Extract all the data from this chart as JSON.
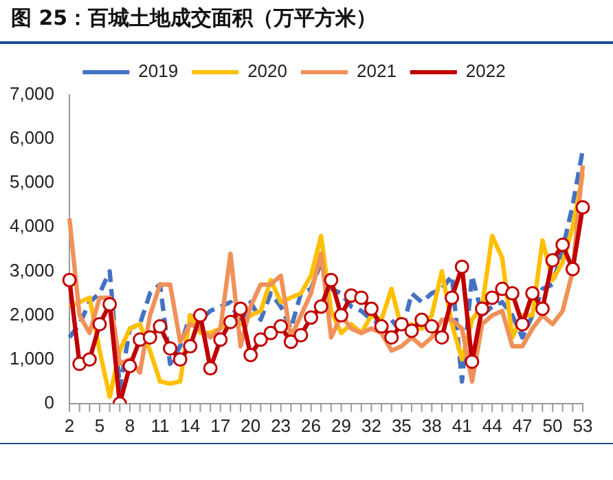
{
  "chart_data": {
    "type": "line",
    "title": "图 25：百城土地成交面积（万平方米）",
    "categories": [
      "2",
      null,
      null,
      "5",
      null,
      null,
      "8",
      null,
      null,
      "11",
      null,
      null,
      "14",
      null,
      null,
      "17",
      null,
      null,
      "20",
      null,
      null,
      "23",
      null,
      null,
      "26",
      null,
      null,
      "29",
      null,
      null,
      "32",
      null,
      null,
      "35",
      null,
      null,
      "38",
      null,
      null,
      "41",
      null,
      null,
      "44",
      null,
      null,
      "47",
      null,
      null,
      "50",
      null,
      null,
      "53"
    ],
    "series": [
      {
        "name": "2019",
        "color": "#4472c4",
        "line_style": "dashed",
        "marker": "none",
        "values": [
          1500,
          1800,
          2300,
          2500,
          3000,
          350,
          1700,
          1800,
          2500,
          2700,
          900,
          1300,
          2000,
          1900,
          2100,
          2200,
          2300,
          1800,
          2300,
          1900,
          2500,
          2200,
          1700,
          2500,
          2600,
          3200,
          2600,
          2500,
          2200,
          2100,
          1900,
          1800,
          1900,
          1600,
          2500,
          2300,
          2500,
          2600,
          2900,
          500,
          2900,
          2000,
          2200,
          2300,
          2000,
          1500,
          2000,
          2600,
          2700,
          3500,
          4500,
          5750
        ]
      },
      {
        "name": "2020",
        "color": "#ffc000",
        "line_style": "solid",
        "marker": "none",
        "values": [
          2200,
          2300,
          2400,
          1200,
          150,
          1200,
          1700,
          1800,
          1200,
          500,
          450,
          500,
          2000,
          1600,
          1600,
          1700,
          1900,
          1800,
          2000,
          2100,
          2800,
          2300,
          2400,
          2500,
          2900,
          3800,
          2100,
          1600,
          1800,
          1600,
          2000,
          1900,
          2600,
          1700,
          1800,
          1700,
          2000,
          3000,
          1800,
          1000,
          1900,
          2200,
          3800,
          3300,
          1500,
          2000,
          2000,
          3700,
          2800,
          3200,
          4000,
          5200
        ]
      },
      {
        "name": "2021",
        "color": "#f0915a",
        "line_style": "solid",
        "marker": "none",
        "values": [
          4200,
          2000,
          1600,
          2400,
          2400,
          900,
          1000,
          700,
          2000,
          2700,
          2700,
          1400,
          1800,
          1700,
          1500,
          1700,
          3400,
          1300,
          2200,
          2700,
          2700,
          2900,
          1500,
          2000,
          2500,
          3400,
          1500,
          2000,
          1700,
          1600,
          1700,
          1600,
          1200,
          1300,
          1500,
          1300,
          1500,
          1900,
          1900,
          1700,
          500,
          1800,
          2000,
          2100,
          1300,
          1300,
          1700,
          2000,
          1800,
          2100,
          3000,
          5400
        ]
      },
      {
        "name": "2022",
        "color": "#c00000",
        "line_style": "solid",
        "marker": "circle",
        "values": [
          2800,
          900,
          1000,
          1800,
          2250,
          0,
          850,
          1450,
          1500,
          1750,
          1250,
          1000,
          1300,
          2000,
          800,
          1450,
          1850,
          2150,
          1100,
          1450,
          1600,
          1750,
          1400,
          1550,
          1950,
          2200,
          2800,
          2000,
          2450,
          2400,
          2150,
          1750,
          1500,
          1800,
          1650,
          1900,
          1750,
          1500,
          2400,
          3100,
          950,
          2150,
          2400,
          2600,
          2500,
          1800,
          2500,
          2150,
          3250,
          3600,
          3050,
          4450
        ]
      }
    ],
    "ylim": [
      0,
      7000
    ],
    "yticks": [
      {
        "value": 0,
        "label": "0"
      },
      {
        "value": 1000,
        "label": "1,000"
      },
      {
        "value": 2000,
        "label": "2,000"
      },
      {
        "value": 3000,
        "label": "3,000"
      },
      {
        "value": 4000,
        "label": "4,000"
      },
      {
        "value": 5000,
        "label": "5,000"
      },
      {
        "value": 6000,
        "label": "6,000"
      },
      {
        "value": 7000,
        "label": "7,000"
      }
    ],
    "grid": false,
    "legend": "top"
  }
}
